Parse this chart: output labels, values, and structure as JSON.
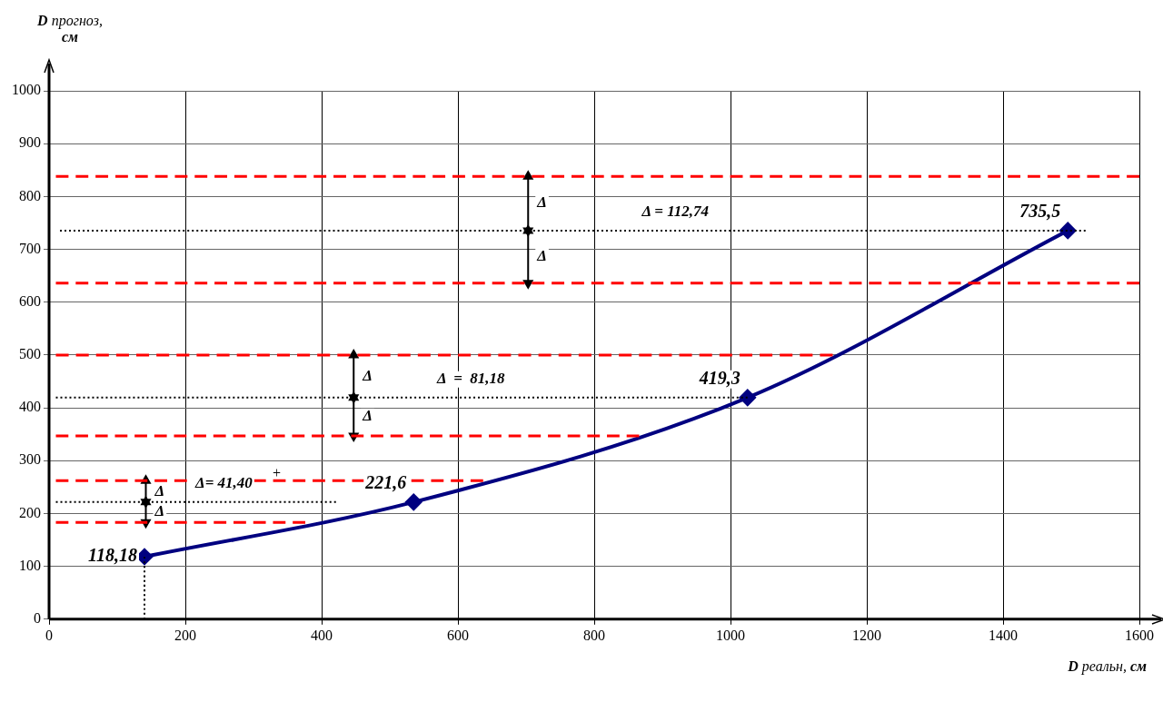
{
  "chart_data": {
    "type": "line",
    "xlabel": "D реальн,  см",
    "ylabel": "D прогноз, см",
    "xlim": [
      0,
      1600
    ],
    "xticks": [
      0,
      200,
      400,
      600,
      800,
      1000,
      1200,
      1400,
      1600
    ],
    "ylim": [
      0,
      1000
    ],
    "yticks": [
      0,
      100,
      200,
      300,
      400,
      500,
      600,
      700,
      800,
      900,
      1000
    ],
    "grid": true,
    "legend": false,
    "series": [
      {
        "color": "#ff0000",
        "x": [
          10,
          1600
        ],
        "values": [
          838,
          838
        ],
        "line_style": "dashed",
        "marker": "none"
      },
      {
        "color": "#ff0000",
        "x": [
          10,
          1600
        ],
        "values": [
          636,
          636
        ],
        "line_style": "dashed",
        "marker": "none"
      },
      {
        "color": "#ff0000",
        "x": [
          10,
          1150
        ],
        "values": [
          500,
          500
        ],
        "line_style": "dashed",
        "marker": "none"
      },
      {
        "color": "#ff0000",
        "x": [
          10,
          866
        ],
        "values": [
          347,
          347
        ],
        "line_style": "dashed",
        "marker": "none"
      },
      {
        "color": "#ff0000",
        "x": [
          10,
          637
        ],
        "values": [
          262,
          262
        ],
        "line_style": "dashed",
        "marker": "none"
      },
      {
        "color": "#ff0000",
        "x": [
          10,
          376
        ],
        "values": [
          183,
          183
        ],
        "line_style": "dashed",
        "marker": "none"
      },
      {
        "name": "Δ = 112,74",
        "color": "#000000",
        "x": [
          16,
          1521
        ],
        "values": [
          735.5,
          735.5
        ],
        "line_style": "dotted",
        "marker": "none"
      },
      {
        "name": "Δ  =  81,18",
        "color": "#000000",
        "x": [
          10,
          1025
        ],
        "values": [
          419.3,
          419.3
        ],
        "line_style": "dotted",
        "marker": "none"
      },
      {
        "name": "Δ= 41,40",
        "color": "#000000",
        "x": [
          10,
          421
        ],
        "values": [
          221.6,
          221.6
        ],
        "line_style": "dotted",
        "marker": "none"
      },
      {
        "color": "#000000",
        "x": [
          140,
          140
        ],
        "values": [
          0,
          118
        ],
        "line_style": "dotted",
        "marker": "none"
      },
      {
        "name": "Δ",
        "color": "#000000",
        "x": [
          703,
          703
        ],
        "values": [
          735.5,
          838
        ],
        "line_style": "solid",
        "marker": "triangle"
      },
      {
        "name": "Δ",
        "color": "#000000",
        "x": [
          703,
          703
        ],
        "values": [
          636,
          735.5
        ],
        "line_style": "solid",
        "marker": "triangle"
      },
      {
        "name": "Δ",
        "color": "#000000",
        "x": [
          447,
          447
        ],
        "values": [
          419.3,
          500
        ],
        "line_style": "solid",
        "marker": "triangle"
      },
      {
        "name": "Δ",
        "color": "#000000",
        "x": [
          447,
          447
        ],
        "values": [
          347,
          419.3
        ],
        "line_style": "solid",
        "marker": "triangle"
      },
      {
        "name": "Δ",
        "color": "#000000",
        "x": [
          142,
          142
        ],
        "values": [
          221.6,
          262
        ],
        "line_style": "solid",
        "marker": "triangle"
      },
      {
        "name": "Δ",
        "color": "#000000",
        "x": [
          142,
          142
        ],
        "values": [
          183,
          221.6
        ],
        "line_style": "solid",
        "marker": "triangle"
      },
      {
        "color": "#000080",
        "x": [
          140,
          535,
          1025,
          1495
        ],
        "values": [
          118.18,
          221.6,
          419.3,
          735.5
        ],
        "value_labels": [
          "118,18",
          "221,6",
          "419,3",
          "735,5"
        ],
        "line_style": "solid",
        "marker": "diamond"
      }
    ],
    "annotations": [
      "+"
    ]
  }
}
